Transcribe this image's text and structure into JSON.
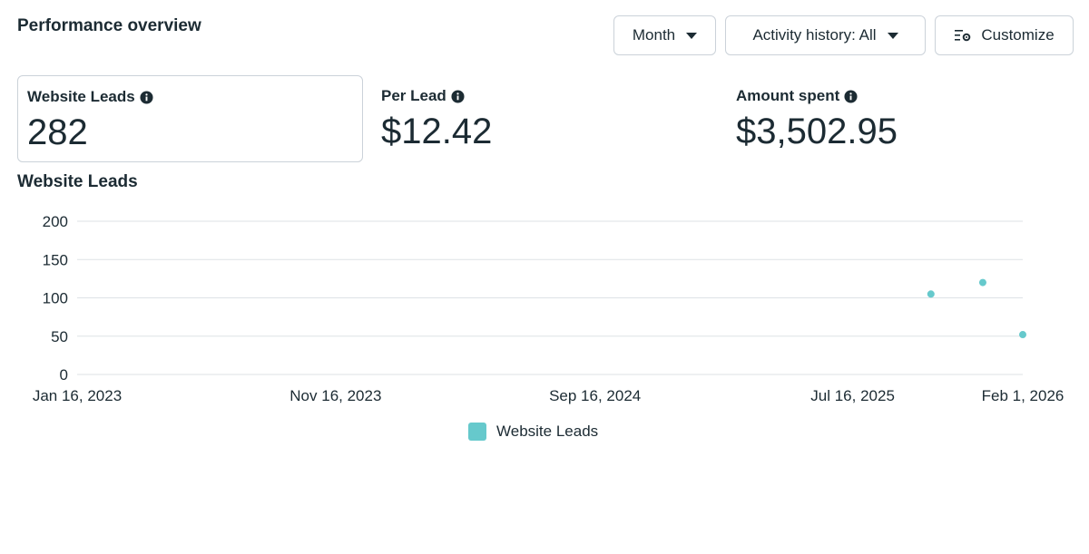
{
  "header": {
    "title": "Performance overview",
    "month_label": "Month",
    "activity_label": "Activity history: All",
    "customize_label": "Customize"
  },
  "metrics": [
    {
      "label": "Website Leads",
      "value": "282"
    },
    {
      "label": "Per Lead",
      "value": "$12.42"
    },
    {
      "label": "Amount spent",
      "value": "$3,502.95"
    }
  ],
  "colors": {
    "series": "#66c9cc",
    "text": "#1c2b33",
    "grid": "#dde2e6"
  },
  "chart_data": {
    "type": "scatter",
    "title": "Website Leads",
    "ylim": [
      0,
      200
    ],
    "y_ticks": [
      0,
      50,
      100,
      150,
      200
    ],
    "x_tick_labels": [
      "Jan 16, 2023",
      "Nov 16, 2023",
      "Sep 16, 2024",
      "Jul 16, 2025",
      "Feb 1, 2026"
    ],
    "grid": true,
    "legend_position": "bottom-center",
    "series": [
      {
        "name": "Website Leads",
        "points": [
          {
            "x": "2025-10-16",
            "y": 105
          },
          {
            "x": "2025-12-16",
            "y": 120
          },
          {
            "x": "2026-02-01",
            "y": 52
          }
        ]
      }
    ]
  }
}
